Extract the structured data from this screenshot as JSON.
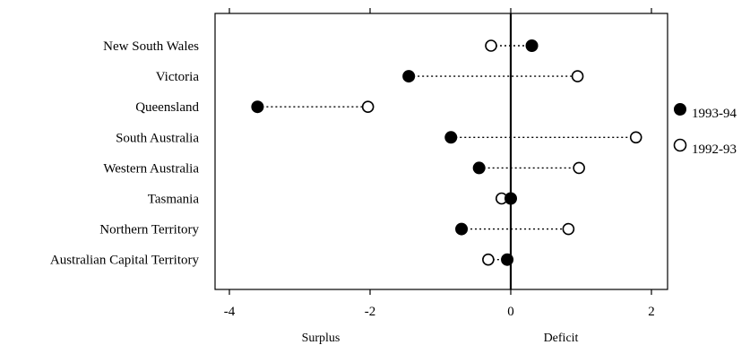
{
  "chart_data": {
    "type": "scatter",
    "style": "dot-plot",
    "categories": [
      "New South Wales",
      "Victoria",
      "Queensland",
      "South Australia",
      "Western Australia",
      "Tasmania",
      "Northern Territory",
      "Australian Capital Territory"
    ],
    "series": [
      {
        "name": "1993-94",
        "marker": "filled-circle",
        "values": [
          0.3,
          -1.45,
          -3.6,
          -0.85,
          -0.45,
          0.0,
          -0.7,
          -0.05
        ]
      },
      {
        "name": "1992-93",
        "marker": "open-circle",
        "values": [
          -0.28,
          0.95,
          -2.03,
          1.78,
          0.97,
          -0.13,
          0.82,
          -0.32
        ]
      }
    ],
    "xlim": [
      -4.2,
      2.2
    ],
    "xticks": [
      -4,
      -2,
      0,
      2
    ],
    "x_annotations": {
      "left": "Surplus",
      "right": "Deficit"
    },
    "reference_line": 0,
    "connector": "dotted",
    "grid": false,
    "legend_position": "right"
  }
}
